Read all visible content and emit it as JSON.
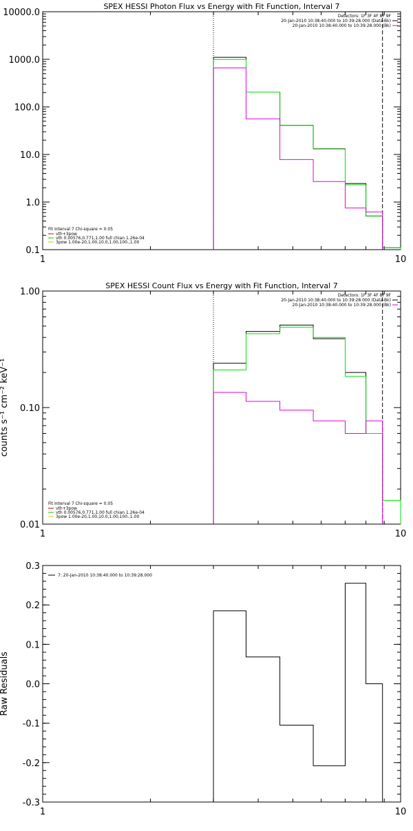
{
  "chart_data": [
    {
      "type": "line",
      "title": "SPEX HESSI Photon Flux vs Energy with Fit Function, Interval 7",
      "xlabel": "",
      "ylabel": "",
      "x_scale": "log",
      "y_scale": "log",
      "xlim": [
        1,
        10
      ],
      "ylim": [
        0.1,
        10000
      ],
      "x_tick_labels": [
        "1",
        "10"
      ],
      "y_tick_labels": [
        "0.1",
        "1.0",
        "10.0",
        "100.0",
        "1000.0",
        "10000.0"
      ],
      "vline_dotted_x": 3.0,
      "vline_dashed_x": 8.9,
      "header_lines": [
        "Detectors: 1F 3F 4F 8F 9F",
        "20-Jan-2010 10:38:40.000 to 10:39:28.000 (Data-Bk)",
        "20-Jan-2010 10:38:40.000 to 10:39:28.000 (Bk)"
      ],
      "legend_title": "Fit Interval  7   Chi-square = 0.05",
      "legend": [
        {
          "label": "vth+3pow",
          "color": "#cc0000"
        },
        {
          "label": "vth 0.00576,0.771,1.00   full chian 1.26e-04",
          "color": "#00cc00"
        },
        {
          "label": "3pow 1.00e-20,1.00,10.0,1.00,100.,1.00",
          "color": "#cccc00"
        }
      ],
      "bin_edges": [
        3.0,
        3.7,
        4.6,
        5.7,
        7.0,
        8.0,
        8.9,
        10.0
      ],
      "series": [
        {
          "name": "20-Jan-2010 10:38:40.000 to 10:39:28.000 (Data-Bk)",
          "color": "#000000",
          "values": [
            1100,
            205,
            41,
            13.2,
            2.45,
            0.51,
            0.11
          ]
        },
        {
          "name": "",
          "color": "#00e000",
          "values": [
            990,
            205,
            41,
            13,
            2.3,
            0.51,
            0.11
          ]
        },
        {
          "name": "20-Jan-2010 10:38:40.000 to 10:39:28.000 (Bk)",
          "color": "#e000e0",
          "values": [
            660,
            56,
            7.8,
            2.7,
            0.75,
            0.62,
            null
          ]
        }
      ]
    },
    {
      "type": "line",
      "title": "SPEX HESSI Count Flux vs Energy with Fit Function, Interval 7",
      "xlabel": "",
      "ylabel": "counts s⁻¹ cm⁻² keV⁻¹",
      "x_scale": "log",
      "y_scale": "log",
      "xlim": [
        1,
        10
      ],
      "ylim": [
        0.01,
        1.0
      ],
      "x_tick_labels": [
        "1",
        "10"
      ],
      "y_tick_labels": [
        "0.01",
        "0.10",
        "1.00"
      ],
      "vline_dotted_x": 3.0,
      "vline_dashed_x": 8.9,
      "header_lines": [
        "Detectors: 1F 3F 4F 8F 9F",
        "20-Jan-2010 10:38:40.000 to 10:39:28.000 (Data-Bk)",
        "20-Jan-2010 10:38:40.000 to 10:39:28.000 (Bk)"
      ],
      "legend_title": "Fit Interval  7   Chi-square = 0.05",
      "legend": [
        {
          "label": "vth+3pow",
          "color": "#cc0000"
        },
        {
          "label": "vth 0.00576,0.771,1.00   full chian 1.26e-04",
          "color": "#00cc00"
        },
        {
          "label": "3pow 1.00e-20,1.00,10.0,1.00,100.,1.00",
          "color": "#cccc00"
        }
      ],
      "bin_edges": [
        3.0,
        3.7,
        4.6,
        5.7,
        7.0,
        8.0,
        8.9,
        10.0
      ],
      "series": [
        {
          "name": "20-Jan-2010 10:38:40.000 to 10:39:28.000 (Data-Bk)",
          "color": "#000000",
          "values": [
            0.24,
            0.45,
            0.51,
            0.39,
            0.2,
            0.06,
            0.016
          ]
        },
        {
          "name": "",
          "color": "#00e000",
          "values": [
            0.21,
            0.43,
            0.49,
            0.4,
            0.185,
            0.06,
            0.016
          ]
        },
        {
          "name": "20-Jan-2010 10:38:40.000 to 10:39:28.000 (Bk)",
          "color": "#e000e0",
          "values": [
            0.135,
            0.113,
            0.095,
            0.077,
            0.06,
            0.077,
            null
          ]
        }
      ]
    },
    {
      "type": "line",
      "title": "",
      "xlabel": "",
      "ylabel": "Raw Residuals",
      "x_scale": "log",
      "y_scale": "linear",
      "xlim": [
        1,
        10
      ],
      "ylim": [
        -0.3,
        0.3
      ],
      "x_tick_labels": [
        "1",
        "10"
      ],
      "y_tick_labels": [
        "-0.3",
        "-0.2",
        "-0.1",
        "0.0",
        "0.1",
        "0.2",
        "0.3"
      ],
      "legend": [
        {
          "label": "7: 20-Jan-2010 10:38:40.000 to 10:39:28.000",
          "color": "#000000"
        }
      ],
      "bin_edges": [
        3.0,
        3.7,
        4.6,
        5.7,
        7.0,
        8.0,
        8.9
      ],
      "series": [
        {
          "name": "7: 20-Jan-2010 10:38:40.000 to 10:39:28.000",
          "color": "#000000",
          "values": [
            0.185,
            0.068,
            -0.105,
            -0.208,
            0.255,
            0.0
          ]
        }
      ]
    }
  ]
}
